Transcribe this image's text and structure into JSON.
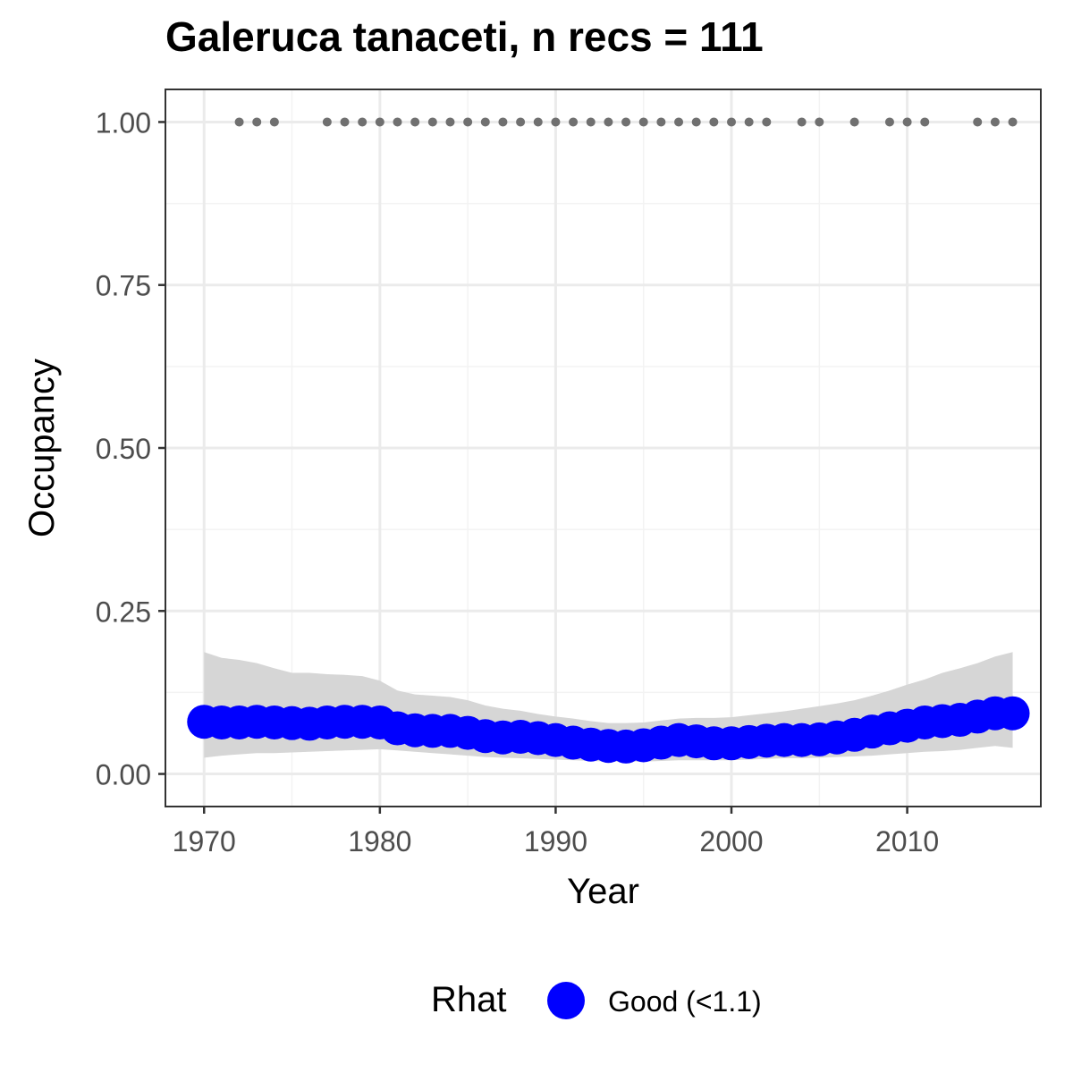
{
  "chart_data": {
    "type": "line",
    "title": "Galeruca tanaceti, n recs = 111",
    "xlabel": "Year",
    "ylabel": "Occupancy",
    "xlim": [
      1967.8,
      2017.6
    ],
    "ylim": [
      -0.05,
      1.05
    ],
    "x_ticks": [
      1970,
      1980,
      1990,
      2000,
      2010
    ],
    "y_ticks": [
      0.0,
      0.25,
      0.5,
      0.75,
      1.0
    ],
    "y_tick_labels": [
      "0.00",
      "0.25",
      "0.50",
      "0.75",
      "1.00"
    ],
    "grid": true,
    "colors": {
      "series": "#0000ff",
      "band": "#d6d6d6",
      "records": "#707070",
      "panel_border": "#333333",
      "grid": "#ebebeb"
    },
    "series": [
      {
        "name": "Good (<1.1)",
        "x": [
          1970,
          1971,
          1972,
          1973,
          1974,
          1975,
          1976,
          1977,
          1978,
          1979,
          1980,
          1981,
          1982,
          1983,
          1984,
          1985,
          1986,
          1987,
          1988,
          1989,
          1990,
          1991,
          1992,
          1993,
          1994,
          1995,
          1996,
          1997,
          1998,
          1999,
          2000,
          2001,
          2002,
          2003,
          2004,
          2005,
          2006,
          2007,
          2008,
          2009,
          2010,
          2011,
          2012,
          2013,
          2014,
          2015,
          2016
        ],
        "y": [
          0.08,
          0.079,
          0.079,
          0.08,
          0.079,
          0.078,
          0.077,
          0.079,
          0.08,
          0.08,
          0.079,
          0.07,
          0.067,
          0.066,
          0.066,
          0.063,
          0.058,
          0.056,
          0.057,
          0.055,
          0.052,
          0.048,
          0.045,
          0.043,
          0.042,
          0.044,
          0.048,
          0.052,
          0.05,
          0.047,
          0.047,
          0.049,
          0.051,
          0.052,
          0.052,
          0.053,
          0.056,
          0.06,
          0.065,
          0.07,
          0.074,
          0.079,
          0.081,
          0.083,
          0.088,
          0.093,
          0.093
        ],
        "lower": [
          0.025,
          0.028,
          0.03,
          0.032,
          0.032,
          0.033,
          0.034,
          0.035,
          0.036,
          0.037,
          0.038,
          0.036,
          0.034,
          0.032,
          0.03,
          0.028,
          0.026,
          0.025,
          0.024,
          0.023,
          0.022,
          0.021,
          0.02,
          0.019,
          0.019,
          0.019,
          0.02,
          0.021,
          0.021,
          0.021,
          0.021,
          0.022,
          0.023,
          0.024,
          0.024,
          0.025,
          0.026,
          0.027,
          0.028,
          0.03,
          0.032,
          0.034,
          0.035,
          0.037,
          0.04,
          0.043,
          0.04
        ],
        "upper": [
          0.187,
          0.178,
          0.175,
          0.17,
          0.162,
          0.155,
          0.155,
          0.153,
          0.152,
          0.15,
          0.143,
          0.128,
          0.122,
          0.12,
          0.118,
          0.113,
          0.105,
          0.1,
          0.097,
          0.092,
          0.088,
          0.085,
          0.081,
          0.078,
          0.078,
          0.079,
          0.082,
          0.085,
          0.086,
          0.086,
          0.087,
          0.09,
          0.093,
          0.096,
          0.1,
          0.104,
          0.108,
          0.113,
          0.12,
          0.128,
          0.137,
          0.145,
          0.155,
          0.162,
          0.17,
          0.18,
          0.187
        ]
      }
    ],
    "records": {
      "y": 1.0,
      "x": [
        1972,
        1973,
        1974,
        1977,
        1978,
        1979,
        1980,
        1981,
        1982,
        1983,
        1984,
        1985,
        1986,
        1987,
        1988,
        1989,
        1990,
        1991,
        1992,
        1993,
        1994,
        1995,
        1996,
        1997,
        1998,
        1999,
        2000,
        2001,
        2002,
        2004,
        2005,
        2007,
        2009,
        2010,
        2011,
        2014,
        2015,
        2016
      ]
    },
    "legend": {
      "title": "Rhat",
      "entries": [
        "Good (<1.1)"
      ],
      "position": "bottom"
    }
  }
}
